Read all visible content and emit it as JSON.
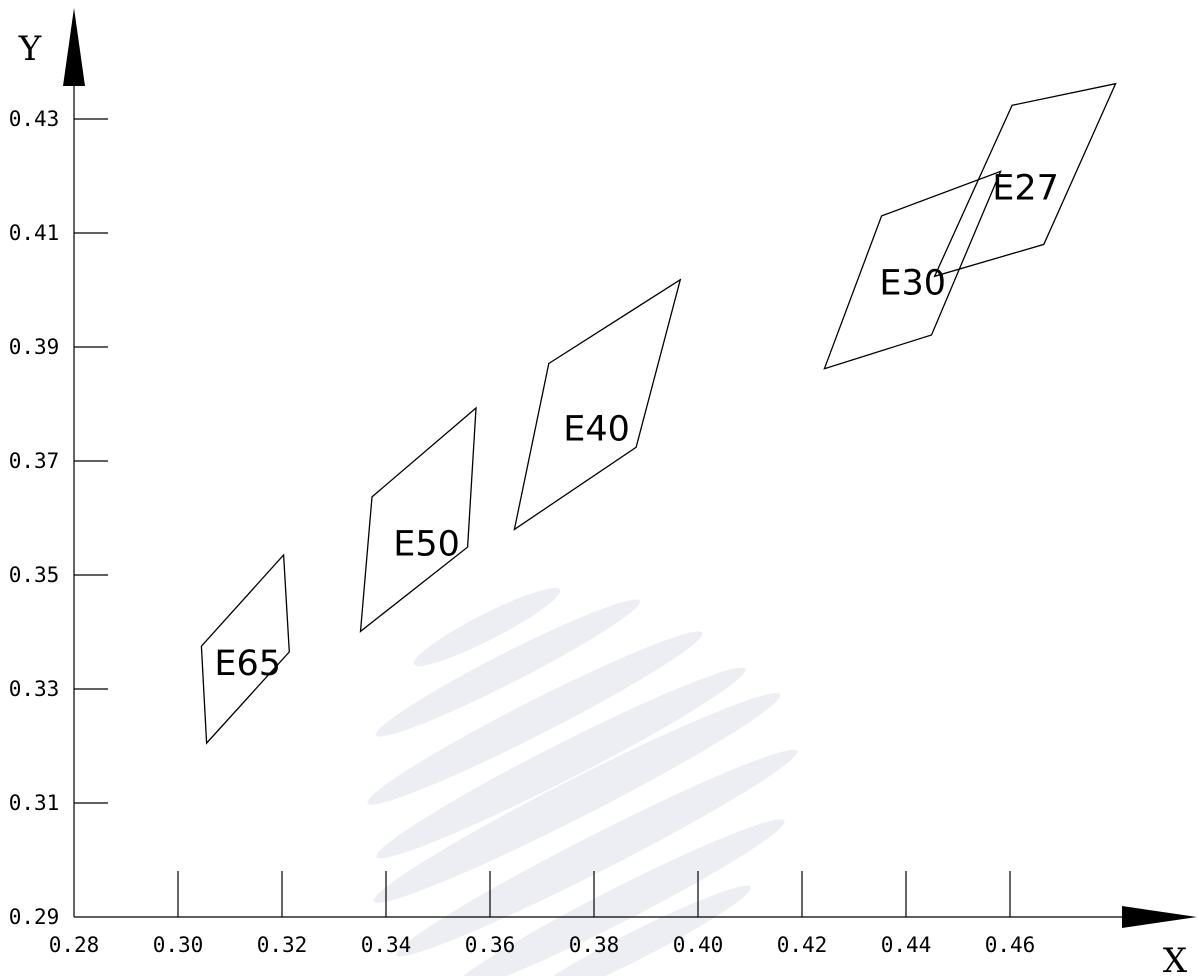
{
  "chart_data": {
    "type": "scatter",
    "title": "",
    "xlabel": "X",
    "ylabel": "Y",
    "xlim": [
      0.28,
      0.48
    ],
    "ylim": [
      0.29,
      0.437
    ],
    "x_ticks": [
      "0.28",
      "0.30",
      "0.32",
      "0.34",
      "0.36",
      "0.38",
      "0.40",
      "0.42",
      "0.44",
      "0.46"
    ],
    "y_ticks": [
      "0.29",
      "0.31",
      "0.33",
      "0.35",
      "0.37",
      "0.39",
      "0.41",
      "0.43"
    ],
    "grid": false,
    "series": [
      {
        "name": "E65",
        "label_at": [
          0.3134,
          0.3346
        ],
        "points": [
          [
            0.3045,
            0.3375
          ],
          [
            0.3203,
            0.3535
          ],
          [
            0.3214,
            0.3365
          ],
          [
            0.3055,
            0.3205
          ]
        ]
      },
      {
        "name": "E50",
        "label_at": [
          0.3478,
          0.3555
        ],
        "points": [
          [
            0.3373,
            0.3637
          ],
          [
            0.3573,
            0.3793
          ],
          [
            0.3557,
            0.3549
          ],
          [
            0.3351,
            0.3401
          ]
        ]
      },
      {
        "name": "E40",
        "label_at": [
          0.3805,
          0.3757
        ],
        "points": [
          [
            0.3713,
            0.3871
          ],
          [
            0.3966,
            0.4018
          ],
          [
            0.3881,
            0.3724
          ],
          [
            0.3647,
            0.358
          ]
        ]
      },
      {
        "name": "E30",
        "label_at": [
          0.4413,
          0.4013
        ],
        "points": [
          [
            0.4353,
            0.413
          ],
          [
            0.4582,
            0.4208
          ],
          [
            0.4449,
            0.3921
          ],
          [
            0.4243,
            0.3862
          ]
        ]
      },
      {
        "name": "E27",
        "label_at": [
          0.463,
          0.418
        ],
        "points": [
          [
            0.4604,
            0.4324
          ],
          [
            0.4803,
            0.4362
          ],
          [
            0.4665,
            0.408
          ],
          [
            0.4455,
            0.4024
          ]
        ]
      }
    ]
  },
  "colors": {
    "axis": "#000000",
    "outline": "#000000",
    "watermark": "#e9ecf2",
    "background": "#ffffff"
  }
}
